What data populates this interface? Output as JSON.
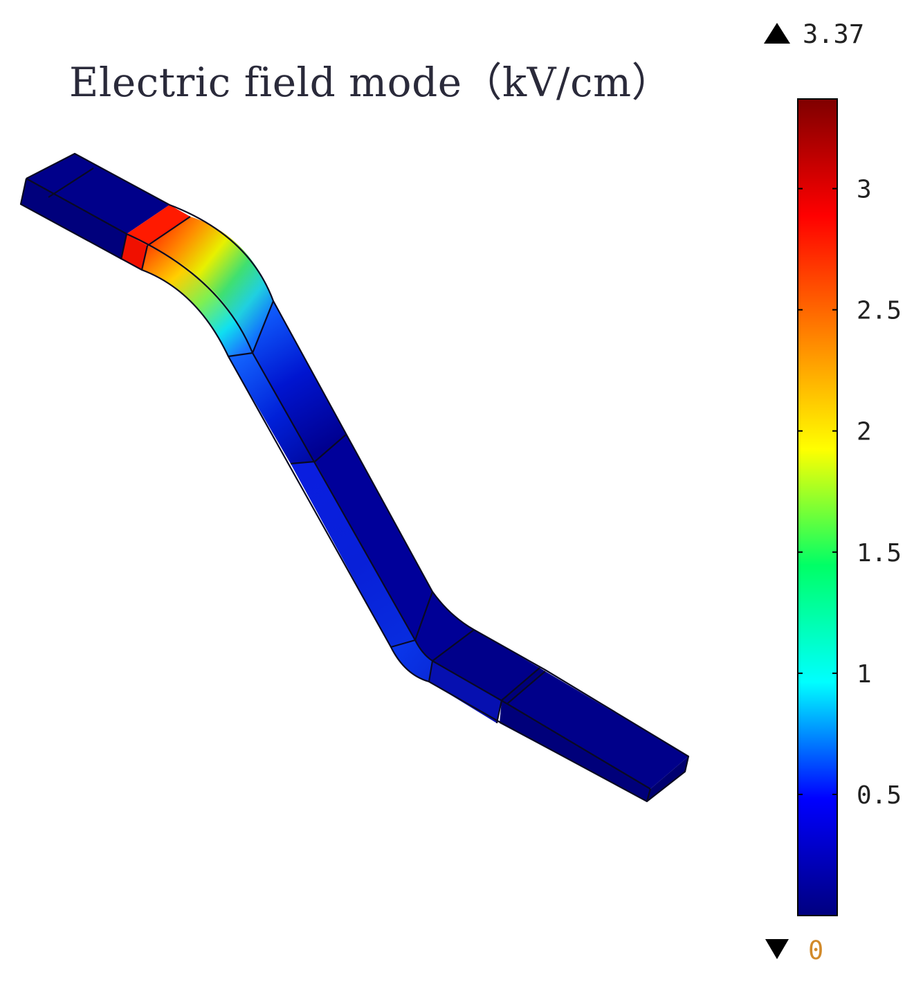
{
  "plot": {
    "title": "Electric field mode（kV/cm）"
  },
  "colorbar": {
    "max_label": "3.37",
    "min_label": "0",
    "max_marker_icon": "up-triangle-icon",
    "min_marker_icon": "down-triangle-icon",
    "min_value": 0,
    "max_value": 3.37,
    "ticks": [
      {
        "value": 0.5,
        "label": "0.5"
      },
      {
        "value": 1,
        "label": "1"
      },
      {
        "value": 1.5,
        "label": "1.5"
      },
      {
        "value": 2,
        "label": "2"
      },
      {
        "value": 2.5,
        "label": "2.5"
      },
      {
        "value": 3,
        "label": "3"
      }
    ],
    "colormap": [
      "#00007f",
      "#0000ff",
      "#00ffff",
      "#00ff66",
      "#ffff00",
      "#ff7f00",
      "#ff0000",
      "#7f0000"
    ]
  },
  "colors": {
    "field_low": "#00008a",
    "field_high": "#ff0000",
    "edge": "#0a0a22",
    "background": "#ffffff"
  }
}
